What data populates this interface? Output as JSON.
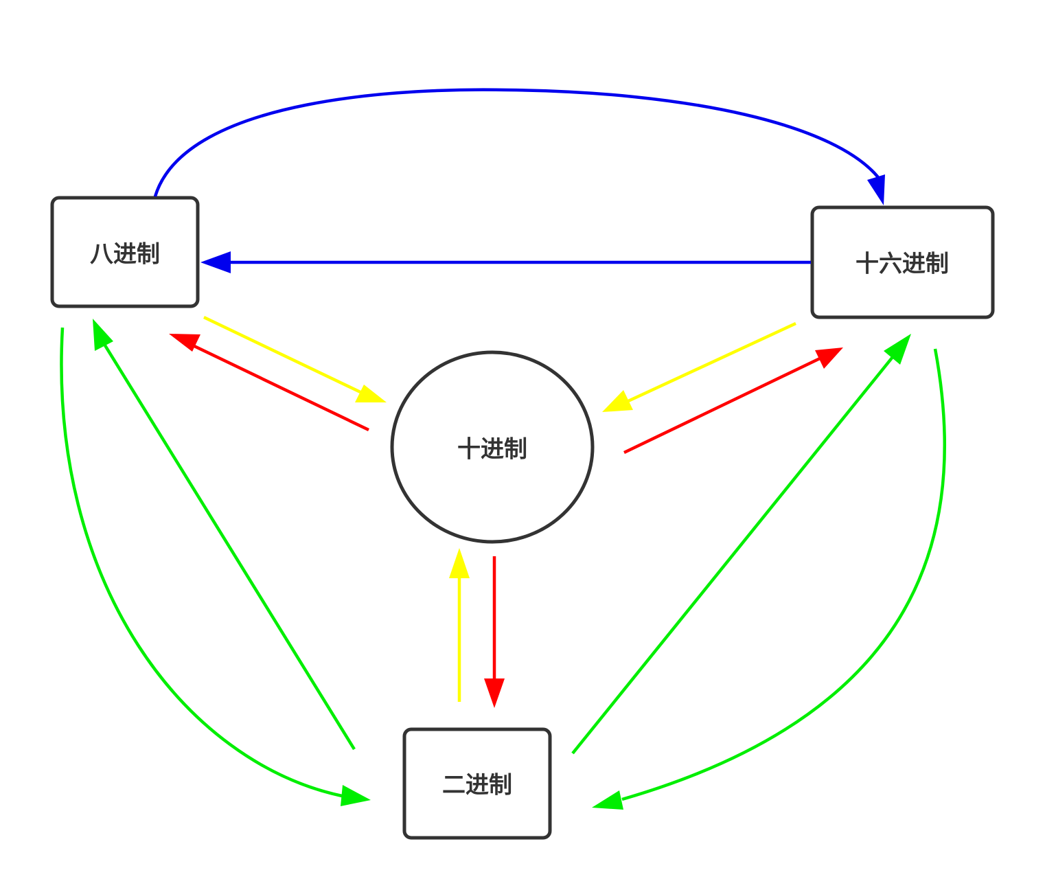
{
  "nodes": {
    "octal": {
      "label": "八进制"
    },
    "hexadecimal": {
      "label": "十六进制"
    },
    "decimal": {
      "label": "十进制"
    },
    "binary": {
      "label": "二进制"
    }
  },
  "colors": {
    "node_border": "#333333",
    "label_text": "#333333",
    "octal_hex_arrows": "#0000ee",
    "to_decimal_arrows": "#ffff00",
    "from_decimal_arrows": "#ff0000",
    "binary_arrows": "#00ee00"
  },
  "edges": [
    {
      "from": "octal",
      "to": "hexadecimal",
      "color": "#0000ee"
    },
    {
      "from": "hexadecimal",
      "to": "octal",
      "color": "#0000ee"
    },
    {
      "from": "octal",
      "to": "decimal",
      "color": "#ffff00"
    },
    {
      "from": "decimal",
      "to": "octal",
      "color": "#ff0000"
    },
    {
      "from": "hexadecimal",
      "to": "decimal",
      "color": "#ffff00"
    },
    {
      "from": "decimal",
      "to": "hexadecimal",
      "color": "#ff0000"
    },
    {
      "from": "binary",
      "to": "decimal",
      "color": "#ffff00"
    },
    {
      "from": "decimal",
      "to": "binary",
      "color": "#ff0000"
    },
    {
      "from": "octal",
      "to": "binary",
      "color": "#00ee00"
    },
    {
      "from": "binary",
      "to": "octal",
      "color": "#00ee00"
    },
    {
      "from": "binary",
      "to": "hexadecimal",
      "color": "#00ee00"
    },
    {
      "from": "hexadecimal",
      "to": "binary",
      "color": "#00ee00"
    }
  ]
}
